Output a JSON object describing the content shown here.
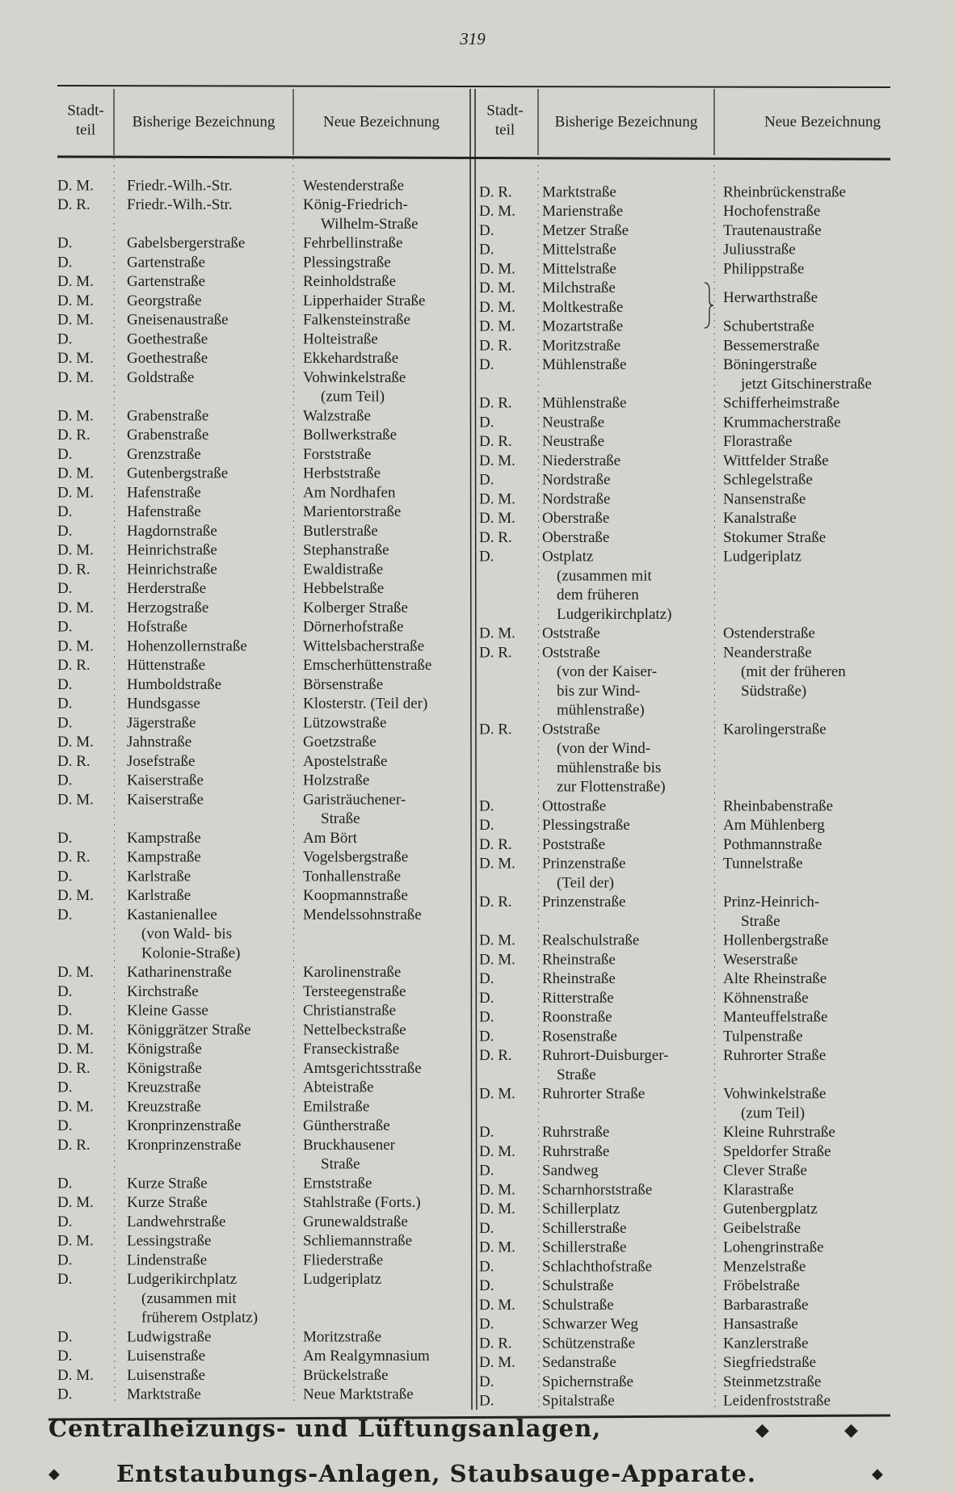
{
  "page_number": "319",
  "header": {
    "district": [
      "Stadt-",
      "teil"
    ],
    "old": "Bisherige Bezeichnung",
    "new": "Neue Bezeichnung"
  },
  "left": {
    "rows": [
      {
        "d": "D. M.",
        "old": [
          "Friedr.-Wilh.-Str."
        ],
        "new": [
          "Westenderstraße"
        ]
      },
      {
        "d": "D. R.",
        "old": [
          "Friedr.-Wilh.-Str."
        ],
        "new": [
          "König-Friedrich-",
          "Wilhelm-Straße"
        ]
      },
      {
        "d": "D.",
        "old": [
          "Gabelsbergerstraße"
        ],
        "new": [
          "Fehrbellinstraße"
        ]
      },
      {
        "d": "D.",
        "old": [
          "Gartenstraße"
        ],
        "new": [
          "Plessingstraße"
        ]
      },
      {
        "d": "D. M.",
        "old": [
          "Gartenstraße"
        ],
        "new": [
          "Reinholdstraße"
        ]
      },
      {
        "d": "D. M.",
        "old": [
          "Georgstraße"
        ],
        "new": [
          "Lipperhaider Straße"
        ]
      },
      {
        "d": "D. M.",
        "old": [
          "Gneisenaustraße"
        ],
        "new": [
          "Falkensteinstraße"
        ]
      },
      {
        "d": "D.",
        "old": [
          "Goethestraße"
        ],
        "new": [
          "Holteistraße"
        ]
      },
      {
        "d": "D. M.",
        "old": [
          "Goethestraße"
        ],
        "new": [
          "Ekkehardstraße"
        ]
      },
      {
        "d": "D. M.",
        "old": [
          "Goldstraße"
        ],
        "new": [
          "Vohwinkelstraße",
          "(zum Teil)"
        ]
      },
      {
        "d": "D. M.",
        "old": [
          "Grabenstraße"
        ],
        "new": [
          "Walzstraße"
        ]
      },
      {
        "d": "D. R.",
        "old": [
          "Grabenstraße"
        ],
        "new": [
          "Bollwerkstraße"
        ]
      },
      {
        "d": "D.",
        "old": [
          "Grenzstraße"
        ],
        "new": [
          "Forststraße"
        ]
      },
      {
        "d": "D. M.",
        "old": [
          "Gutenbergstraße"
        ],
        "new": [
          "Herbststraße"
        ]
      },
      {
        "d": "D. M.",
        "old": [
          "Hafenstraße"
        ],
        "new": [
          "Am Nordhafen"
        ]
      },
      {
        "d": "D.",
        "old": [
          "Hafenstraße"
        ],
        "new": [
          "Marientorstraße"
        ]
      },
      {
        "d": "D.",
        "old": [
          "Hagdornstraße"
        ],
        "new": [
          "Butlerstraße"
        ]
      },
      {
        "d": "D. M.",
        "old": [
          "Heinrichstraße"
        ],
        "new": [
          "Stephanstraße"
        ]
      },
      {
        "d": "D. R.",
        "old": [
          "Heinrichstraße"
        ],
        "new": [
          "Ewaldistraße"
        ]
      },
      {
        "d": "D.",
        "old": [
          "Herderstraße"
        ],
        "new": [
          "Hebbelstraße"
        ]
      },
      {
        "d": "D. M.",
        "old": [
          "Herzogstraße"
        ],
        "new": [
          "Kolberger Straße"
        ]
      },
      {
        "d": "D.",
        "old": [
          "Hofstraße"
        ],
        "new": [
          "Dörnerhofstraße"
        ]
      },
      {
        "d": "D. M.",
        "old": [
          "Hohenzollernstraße"
        ],
        "new": [
          "Wittelsbacherstraße"
        ]
      },
      {
        "d": "D. R.",
        "old": [
          "Hüttenstraße"
        ],
        "new": [
          "Emscherhüttenstraße"
        ]
      },
      {
        "d": "D.",
        "old": [
          "Humboldstraße"
        ],
        "new": [
          "Börsenstraße"
        ]
      },
      {
        "d": "D.",
        "old": [
          "Hundsgasse"
        ],
        "new": [
          "Klosterstr. (Teil der)"
        ]
      },
      {
        "d": "D.",
        "old": [
          "Jägerstraße"
        ],
        "new": [
          "Lützowstraße"
        ]
      },
      {
        "d": "D. M.",
        "old": [
          "Jahnstraße"
        ],
        "new": [
          "Goetzstraße"
        ]
      },
      {
        "d": "D. R.",
        "old": [
          "Josefstraße"
        ],
        "new": [
          "Apostelstraße"
        ]
      },
      {
        "d": "D.",
        "old": [
          "Kaiserstraße"
        ],
        "new": [
          "Holzstraße"
        ]
      },
      {
        "d": "D. M.",
        "old": [
          "Kaiserstraße"
        ],
        "new": [
          "Garisträuchener-",
          "Straße"
        ]
      },
      {
        "d": "D.",
        "old": [
          "Kampstraße"
        ],
        "new": [
          "Am Bört"
        ]
      },
      {
        "d": "D. R.",
        "old": [
          "Kampstraße"
        ],
        "new": [
          "Vogelsbergstraße"
        ]
      },
      {
        "d": "D.",
        "old": [
          "Karlstraße"
        ],
        "new": [
          "Tonhallenstraße"
        ]
      },
      {
        "d": "D. M.",
        "old": [
          "Karlstraße"
        ],
        "new": [
          "Koopmannstraße"
        ]
      },
      {
        "d": "D.",
        "old": [
          "Kastanienallee",
          "(von Wald- bis",
          "Kolonie-Straße)"
        ],
        "new": [
          "Mendelssohnstraße"
        ]
      },
      {
        "d": "D. M.",
        "old": [
          "Katharinenstraße"
        ],
        "new": [
          "Karolinenstraße"
        ]
      },
      {
        "d": "D.",
        "old": [
          "Kirchstraße"
        ],
        "new": [
          "Tersteegenstraße"
        ]
      },
      {
        "d": "D.",
        "old": [
          "Kleine Gasse"
        ],
        "new": [
          "Christianstraße"
        ]
      },
      {
        "d": "D. M.",
        "old": [
          "Königgrätzer Straße"
        ],
        "new": [
          "Nettelbeckstraße"
        ]
      },
      {
        "d": "D. M.",
        "old": [
          "Königstraße"
        ],
        "new": [
          "Franseckistraße"
        ]
      },
      {
        "d": "D. R.",
        "old": [
          "Königstraße"
        ],
        "new": [
          "Amtsgerichtsstraße"
        ]
      },
      {
        "d": "D.",
        "old": [
          "Kreuzstraße"
        ],
        "new": [
          "Abteistraße"
        ]
      },
      {
        "d": "D. M.",
        "old": [
          "Kreuzstraße"
        ],
        "new": [
          "Emilstraße"
        ]
      },
      {
        "d": "D.",
        "old": [
          "Kronprinzenstraße"
        ],
        "new": [
          "Güntherstraße"
        ]
      },
      {
        "d": "D. R.",
        "old": [
          "Kronprinzenstraße"
        ],
        "new": [
          "Bruckhausener",
          "Straße"
        ]
      },
      {
        "d": "D.",
        "old": [
          "Kurze Straße"
        ],
        "new": [
          "Ernststraße"
        ]
      },
      {
        "d": "D. M.",
        "old": [
          "Kurze Straße"
        ],
        "new": [
          "Stahlstraße (Forts.)"
        ]
      },
      {
        "d": "D.",
        "old": [
          "Landwehrstraße"
        ],
        "new": [
          "Grunewaldstraße"
        ]
      },
      {
        "d": "D. M.",
        "old": [
          "Lessingstraße"
        ],
        "new": [
          "Schliemannstraße"
        ]
      },
      {
        "d": "D.",
        "old": [
          "Lindenstraße"
        ],
        "new": [
          "Fliederstraße"
        ]
      },
      {
        "d": "D.",
        "old": [
          "Ludgerikirchplatz",
          "(zusammen mit",
          "früherem Ostplatz)"
        ],
        "new": [
          "Ludgeriplatz"
        ]
      },
      {
        "d": "D.",
        "old": [
          "Ludwigstraße"
        ],
        "new": [
          "Moritzstraße"
        ]
      },
      {
        "d": "D.",
        "old": [
          "Luisenstraße"
        ],
        "new": [
          "Am Realgymnasium"
        ]
      },
      {
        "d": "D. M.",
        "old": [
          "Luisenstraße"
        ],
        "new": [
          "Brückelstraße"
        ]
      },
      {
        "d": "D.",
        "old": [
          "Marktstraße"
        ],
        "new": [
          "Neue Marktstraße"
        ]
      }
    ]
  },
  "right": {
    "rows": [
      {
        "d": "D. R.",
        "old": [
          "Marktstraße"
        ],
        "new": [
          "Rheinbrückenstraße"
        ]
      },
      {
        "d": "D. M.",
        "old": [
          "Marienstraße"
        ],
        "new": [
          "Hochofenstraße"
        ]
      },
      {
        "d": "D.",
        "old": [
          "Metzer Straße"
        ],
        "new": [
          "Trautenaustraße"
        ]
      },
      {
        "d": "D.",
        "old": [
          "Mittelstraße"
        ],
        "new": [
          "Juliusstraße"
        ]
      },
      {
        "d": "D. M.",
        "old": [
          "Mittelstraße"
        ],
        "new": [
          "Philippstraße"
        ]
      },
      {
        "d": "D. M.",
        "old": [
          "Milchstraße"
        ],
        "new": []
      },
      {
        "d": "D. M.",
        "old": [
          "Moltkestraße"
        ],
        "new": [
          "Herwarthstraße"
        ]
      },
      {
        "d": "D. M.",
        "old": [
          "Mozartstraße"
        ],
        "new": [
          "Schubertstraße"
        ]
      },
      {
        "d": "D. R.",
        "old": [
          "Moritzstraße"
        ],
        "new": [
          "Bessemerstraße"
        ]
      },
      {
        "d": "D.",
        "old": [
          "Mühlenstraße"
        ],
        "new": [
          "Böningerstraße",
          "jetzt Gitschinerstraße"
        ]
      },
      {
        "d": "D. R.",
        "old": [
          "Mühlenstraße"
        ],
        "new": [
          "Schifferheimstraße"
        ]
      },
      {
        "d": "D.",
        "old": [
          "Neustraße"
        ],
        "new": [
          "Krummacherstraße"
        ]
      },
      {
        "d": "D. R.",
        "old": [
          "Neustraße"
        ],
        "new": [
          "Florastraße"
        ]
      },
      {
        "d": "D. M.",
        "old": [
          "Niederstraße"
        ],
        "new": [
          "Wittfelder Straße"
        ]
      },
      {
        "d": "D.",
        "old": [
          "Nordstraße"
        ],
        "new": [
          "Schlegelstraße"
        ]
      },
      {
        "d": "D. M.",
        "old": [
          "Nordstraße"
        ],
        "new": [
          "Nansenstraße"
        ]
      },
      {
        "d": "D. M.",
        "old": [
          "Oberstraße"
        ],
        "new": [
          "Kanalstraße"
        ]
      },
      {
        "d": "D. R.",
        "old": [
          "Oberstraße"
        ],
        "new": [
          "Stokumer Straße"
        ]
      },
      {
        "d": "D.",
        "old": [
          "Ostplatz",
          "(zusammen mit",
          "dem früheren",
          "Ludgerikirchplatz)"
        ],
        "new": [
          "Ludgeriplatz"
        ]
      },
      {
        "d": "D. M.",
        "old": [
          "Oststraße"
        ],
        "new": [
          "Ostenderstraße"
        ]
      },
      {
        "d": "D. R.",
        "old": [
          "Oststraße",
          "(von der Kaiser-",
          "bis zur Wind-",
          "mühlenstraße)"
        ],
        "new": [
          "Neanderstraße",
          "(mit der früheren",
          "Südstraße)"
        ]
      },
      {
        "d": "D. R.",
        "old": [
          "Oststraße",
          "(von der Wind-",
          "mühlenstraße bis",
          "zur Flottenstraße)"
        ],
        "new": [
          "Karolingerstraße"
        ]
      },
      {
        "d": "D.",
        "old": [
          "Ottostraße"
        ],
        "new": [
          "Rheinbabenstraße"
        ]
      },
      {
        "d": "D.",
        "old": [
          "Plessingstraße"
        ],
        "new": [
          "Am Mühlenberg"
        ]
      },
      {
        "d": "D. R.",
        "old": [
          "Poststraße"
        ],
        "new": [
          "Pothmannstraße"
        ]
      },
      {
        "d": "D. M.",
        "old": [
          "Prinzenstraße",
          "(Teil der)"
        ],
        "new": [
          "Tunnelstraße"
        ]
      },
      {
        "d": "D. R.",
        "old": [
          "Prinzenstraße"
        ],
        "new": [
          "Prinz-Heinrich-",
          "Straße"
        ]
      },
      {
        "d": "D. M.",
        "old": [
          "Realschulstraße"
        ],
        "new": [
          "Hollenbergstraße"
        ]
      },
      {
        "d": "D. M.",
        "old": [
          "Rheinstraße"
        ],
        "new": [
          "Weserstraße"
        ]
      },
      {
        "d": "D.",
        "old": [
          "Rheinstraße"
        ],
        "new": [
          "Alte Rheinstraße"
        ]
      },
      {
        "d": "D.",
        "old": [
          "Ritterstraße"
        ],
        "new": [
          "Köhnenstraße"
        ]
      },
      {
        "d": "D.",
        "old": [
          "Roonstraße"
        ],
        "new": [
          "Manteuffelstraße"
        ]
      },
      {
        "d": "D.",
        "old": [
          "Rosenstraße"
        ],
        "new": [
          "Tulpenstraße"
        ]
      },
      {
        "d": "D. R.",
        "old": [
          "Ruhrort-Duisburger-",
          "Straße"
        ],
        "new": [
          "Ruhrorter Straße"
        ]
      },
      {
        "d": "D. M.",
        "old": [
          "Ruhrorter Straße"
        ],
        "new": [
          "Vohwinkelstraße",
          "(zum Teil)"
        ]
      },
      {
        "d": "D.",
        "old": [
          "Ruhrstraße"
        ],
        "new": [
          "Kleine Ruhrstraße"
        ]
      },
      {
        "d": "D. M.",
        "old": [
          "Ruhrstraße"
        ],
        "new": [
          "Speldorfer Straße"
        ]
      },
      {
        "d": "D.",
        "old": [
          "Sandweg"
        ],
        "new": [
          "Clever Straße"
        ]
      },
      {
        "d": "D. M.",
        "old": [
          "Scharnhorststraße"
        ],
        "new": [
          "Klarastraße"
        ]
      },
      {
        "d": "D. M.",
        "old": [
          "Schillerplatz"
        ],
        "new": [
          "Gutenbergplatz"
        ]
      },
      {
        "d": "D.",
        "old": [
          "Schillerstraße"
        ],
        "new": [
          "Geibelstraße"
        ]
      },
      {
        "d": "D. M.",
        "old": [
          "Schillerstraße"
        ],
        "new": [
          "Lohengrinstraße"
        ]
      },
      {
        "d": "D.",
        "old": [
          "Schlachthofstraße"
        ],
        "new": [
          "Menzelstraße"
        ]
      },
      {
        "d": "D.",
        "old": [
          "Schulstraße"
        ],
        "new": [
          "Fröbelstraße"
        ]
      },
      {
        "d": "D. M.",
        "old": [
          "Schulstraße"
        ],
        "new": [
          "Barbarastraße"
        ]
      },
      {
        "d": "D.",
        "old": [
          "Schwarzer Weg"
        ],
        "new": [
          "Hansastraße"
        ]
      },
      {
        "d": "D. R.",
        "old": [
          "Schützenstraße"
        ],
        "new": [
          "Kanzlerstraße"
        ]
      },
      {
        "d": "D. M.",
        "old": [
          "Sedanstraße"
        ],
        "new": [
          "Siegfriedstraße"
        ]
      },
      {
        "d": "D.",
        "old": [
          "Spichernstraße"
        ],
        "new": [
          "Steinmetzstraße"
        ]
      },
      {
        "d": "D.",
        "old": [
          "Spitalstraße"
        ],
        "new": [
          "Leidenfroststraße"
        ]
      }
    ]
  },
  "footer": {
    "line1": "Centralheizungs- und Lüftungsanlagen,",
    "line2": "Entstaubungs-Anlagen, Staubsauge-Apparate."
  }
}
